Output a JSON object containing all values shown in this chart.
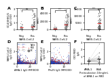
{
  "panel_labels": [
    "A",
    "B",
    "C",
    "D",
    "E",
    "F"
  ],
  "panel_label_fontsize": 4.5,
  "background_color": "#ffffff",
  "dot_size": 0.5,
  "colors": {
    "gray": "#888888",
    "darkgray": "#555555",
    "red_mean": "#ee3333",
    "spike_blue": "#2244bb",
    "rbd_red": "#cc2222",
    "nc_open": "#666666"
  },
  "panelA": {
    "ylabel": "OC43/HKU1\nIgG (OD)",
    "xlabel": "SARS-CoV-2",
    "xticks": [
      "Neg",
      "Pos"
    ],
    "ymin": 0.0,
    "ymax": 3.0,
    "significance": "ns",
    "sig_y": 2.8
  },
  "panelB": {
    "ylabel": "AMA-1 IgG\n(MFI)",
    "xlabel": "SARS-CoV-2",
    "xticks": [
      "Neg",
      "Pos"
    ],
    "ymin": 0,
    "ymax": 50000,
    "significance": "***",
    "sig_y": 46000
  },
  "panelC": {
    "ylabel": "Pfs25 IgG\n(MFI)",
    "xlabel": "SARS-CoV-2",
    "xticks": [
      "Neg",
      "Pos"
    ],
    "ymin": 0,
    "ymax": 15000,
    "significance": "***",
    "sig_y": 14000
  },
  "panelD": {
    "xlabel": "AMA-1 IgG (MFI000)",
    "ylabel": "SARS-CoV-2\nIgG (OD)",
    "xmin": 0,
    "xmax": 30,
    "ymin": 0,
    "ymax": 3.5
  },
  "panelE": {
    "xlabel": "Pfs25 IgG (MFI000)",
    "ylabel": "SARS-CoV-2\nIgG (OD)",
    "xmin": 0,
    "xmax": 15,
    "ymin": 0,
    "ymax": 3.5
  },
  "panelF": {
    "xlabel": "Preincubation 10mg/mL\nof AMA-1 on RBD",
    "ylabel": "OD RBD\nIgG",
    "xticks": [
      "AMA-1",
      "BSA"
    ],
    "ymin": 0,
    "ymax": 3.0
  }
}
